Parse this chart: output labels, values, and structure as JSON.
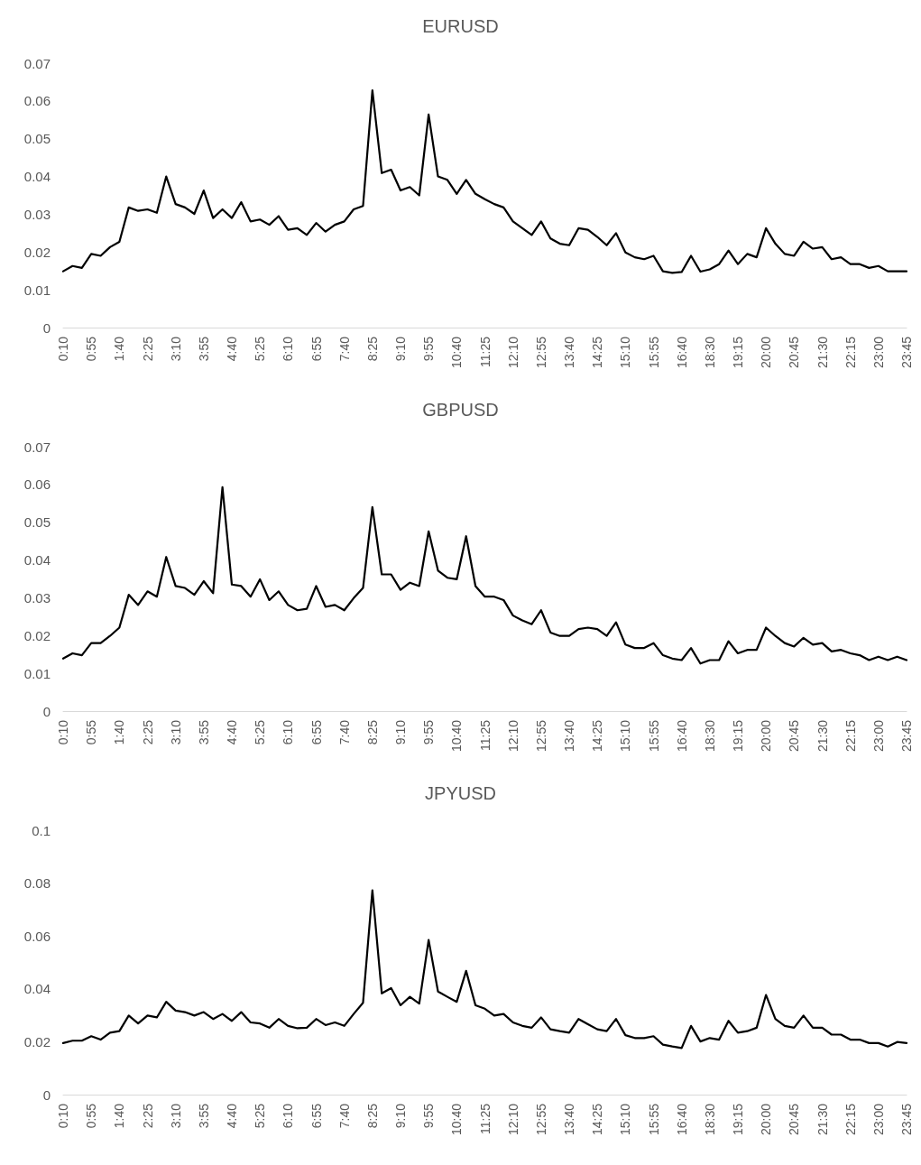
{
  "chart_data": [
    {
      "type": "line",
      "title": "EURUSD",
      "categories": [
        "0:10",
        null,
        null,
        "0:55",
        null,
        null,
        "1:40",
        null,
        null,
        "2:25",
        null,
        null,
        "3:10",
        null,
        null,
        "3:55",
        null,
        null,
        "4:40",
        null,
        null,
        "5:25",
        null,
        null,
        "6:10",
        null,
        null,
        "6:55",
        null,
        null,
        "7:40",
        null,
        null,
        "8:25",
        null,
        null,
        "9:10",
        null,
        null,
        "9:55",
        null,
        null,
        "10:40",
        null,
        null,
        "11:25",
        null,
        null,
        "12:10",
        null,
        null,
        "12:55",
        null,
        null,
        "13:40",
        null,
        null,
        "14:25",
        null,
        null,
        "15:10",
        null,
        null,
        "15:55",
        null,
        null,
        "16:40",
        null,
        null,
        "18:30",
        null,
        null,
        "19:15",
        null,
        null,
        "20:00",
        null,
        null,
        "20:45",
        null,
        null,
        "21:30",
        null,
        null,
        "22:15",
        null,
        null,
        "23:00",
        null,
        null,
        "23:45"
      ],
      "series": [
        {
          "color": "#000000",
          "values": [
            0.0149,
            0.0163,
            0.0158,
            0.0195,
            0.019,
            0.0213,
            0.0227,
            0.0318,
            0.0309,
            0.0313,
            0.0304,
            0.04,
            0.0327,
            0.0318,
            0.0301,
            0.0363,
            0.029,
            0.0313,
            0.029,
            0.0332,
            0.0281,
            0.0286,
            0.0272,
            0.0295,
            0.0259,
            0.0263,
            0.0245,
            0.0277,
            0.0254,
            0.0272,
            0.0281,
            0.0313,
            0.0322,
            0.0628,
            0.0409,
            0.0418,
            0.0363,
            0.0372,
            0.035,
            0.0564,
            0.04,
            0.0391,
            0.0354,
            0.0391,
            0.0354,
            0.034,
            0.0327,
            0.0318,
            0.0281,
            0.0263,
            0.0245,
            0.0281,
            0.0236,
            0.0222,
            0.0218,
            0.0263,
            0.0259,
            0.024,
            0.0218,
            0.025,
            0.0199,
            0.0186,
            0.0181,
            0.019,
            0.0149,
            0.0145,
            0.0147,
            0.019,
            0.0148,
            0.0154,
            0.0168,
            0.0204,
            0.0168,
            0.0195,
            0.0186,
            0.0263,
            0.0222,
            0.0195,
            0.019,
            0.0227,
            0.0209,
            0.0213,
            0.0181,
            0.0186,
            0.0168,
            0.0168,
            0.0158,
            0.0163,
            0.0149,
            0.0149,
            0.0149
          ]
        }
      ],
      "ylim": [
        0,
        0.07
      ],
      "yticks": [
        0,
        0.01,
        0.02,
        0.03,
        0.04,
        0.05,
        0.06,
        0.07
      ],
      "marker": "none",
      "line_style": "solid"
    },
    {
      "type": "line",
      "title": "GBPUSD",
      "categories": [
        "0:10",
        null,
        null,
        "0:55",
        null,
        null,
        "1:40",
        null,
        null,
        "2:25",
        null,
        null,
        "3:10",
        null,
        null,
        "3:55",
        null,
        null,
        "4:40",
        null,
        null,
        "5:25",
        null,
        null,
        "6:10",
        null,
        null,
        "6:55",
        null,
        null,
        "7:40",
        null,
        null,
        "8:25",
        null,
        null,
        "9:10",
        null,
        null,
        "9:55",
        null,
        null,
        "10:40",
        null,
        null,
        "11:25",
        null,
        null,
        "12:10",
        null,
        null,
        "12:55",
        null,
        null,
        "13:40",
        null,
        null,
        "14:25",
        null,
        null,
        "15:10",
        null,
        null,
        "15:55",
        null,
        null,
        "16:40",
        null,
        null,
        "18:30",
        null,
        null,
        "19:15",
        null,
        null,
        "20:00",
        null,
        null,
        "20:45",
        null,
        null,
        "21:30",
        null,
        null,
        "22:15",
        null,
        null,
        "23:00",
        null,
        null,
        "23:45"
      ],
      "series": [
        {
          "color": "#000000",
          "values": [
            0.0139,
            0.0153,
            0.0148,
            0.018,
            0.018,
            0.0199,
            0.0221,
            0.0308,
            0.0281,
            0.0317,
            0.0303,
            0.0408,
            0.0331,
            0.0326,
            0.0308,
            0.0344,
            0.0312,
            0.0593,
            0.0335,
            0.0331,
            0.0303,
            0.0349,
            0.0294,
            0.0317,
            0.0281,
            0.0267,
            0.0271,
            0.0331,
            0.0276,
            0.0281,
            0.0267,
            0.0299,
            0.0326,
            0.054,
            0.0362,
            0.0362,
            0.0321,
            0.034,
            0.0331,
            0.0476,
            0.0372,
            0.0353,
            0.0349,
            0.0463,
            0.0331,
            0.0303,
            0.0303,
            0.0294,
            0.0253,
            0.024,
            0.023,
            0.0267,
            0.0208,
            0.0199,
            0.0199,
            0.0217,
            0.0221,
            0.0217,
            0.0199,
            0.0235,
            0.0176,
            0.0167,
            0.0167,
            0.018,
            0.0148,
            0.0139,
            0.0135,
            0.0167,
            0.0126,
            0.0135,
            0.0135,
            0.0185,
            0.0153,
            0.0162,
            0.0162,
            0.0221,
            0.0199,
            0.018,
            0.0171,
            0.0194,
            0.0176,
            0.018,
            0.0158,
            0.0162,
            0.0153,
            0.0148,
            0.0135,
            0.0144,
            0.0135,
            0.0144,
            0.0135
          ]
        }
      ],
      "ylim": [
        0,
        0.07
      ],
      "yticks": [
        0,
        0.01,
        0.02,
        0.03,
        0.04,
        0.05,
        0.06,
        0.07
      ],
      "marker": "none",
      "line_style": "solid"
    },
    {
      "type": "line",
      "title": "JPYUSD",
      "categories": [
        "0:10",
        null,
        null,
        "0:55",
        null,
        null,
        "1:40",
        null,
        null,
        "2:25",
        null,
        null,
        "3:10",
        null,
        null,
        "3:55",
        null,
        null,
        "4:40",
        null,
        null,
        "5:25",
        null,
        null,
        "6:10",
        null,
        null,
        "6:55",
        null,
        null,
        "7:40",
        null,
        null,
        "8:25",
        null,
        null,
        "9:10",
        null,
        null,
        "9:55",
        null,
        null,
        "10:40",
        null,
        null,
        "11:25",
        null,
        null,
        "12:10",
        null,
        null,
        "12:55",
        null,
        null,
        "13:40",
        null,
        null,
        "14:25",
        null,
        null,
        "15:10",
        null,
        null,
        "15:55",
        null,
        null,
        "16:40",
        null,
        null,
        "18:30",
        null,
        null,
        "19:15",
        null,
        null,
        "20:00",
        null,
        null,
        "20:45",
        null,
        null,
        "21:30",
        null,
        null,
        "22:15",
        null,
        null,
        "23:00",
        null,
        null,
        "23:45"
      ],
      "series": [
        {
          "color": "#000000",
          "values": [
            0.0195,
            0.0204,
            0.0204,
            0.0221,
            0.0208,
            0.0234,
            0.024,
            0.0299,
            0.0269,
            0.0299,
            0.0292,
            0.0351,
            0.0318,
            0.0312,
            0.0299,
            0.0312,
            0.0286,
            0.0305,
            0.0279,
            0.0312,
            0.0273,
            0.0269,
            0.0253,
            0.0286,
            0.026,
            0.0251,
            0.0253,
            0.0286,
            0.0263,
            0.0273,
            0.026,
            0.0305,
            0.0347,
            0.0773,
            0.0383,
            0.0403,
            0.0338,
            0.037,
            0.0344,
            0.0585,
            0.039,
            0.037,
            0.0351,
            0.0468,
            0.0338,
            0.0325,
            0.0299,
            0.0305,
            0.0273,
            0.026,
            0.0253,
            0.0292,
            0.0247,
            0.024,
            0.0234,
            0.0286,
            0.0266,
            0.0247,
            0.024,
            0.0286,
            0.0225,
            0.0214,
            0.0214,
            0.0221,
            0.0189,
            0.0182,
            0.0176,
            0.026,
            0.0201,
            0.0214,
            0.0208,
            0.0279,
            0.0234,
            0.024,
            0.0253,
            0.0377,
            0.0286,
            0.026,
            0.0253,
            0.0299,
            0.0253,
            0.0253,
            0.0227,
            0.0227,
            0.0208,
            0.0208,
            0.0195,
            0.0195,
            0.0182,
            0.0199,
            0.0195
          ]
        }
      ],
      "ylim": [
        0,
        0.1
      ],
      "yticks": [
        0,
        0.02,
        0.04,
        0.06,
        0.08,
        0.1
      ],
      "marker": "none",
      "line_style": "solid"
    }
  ]
}
